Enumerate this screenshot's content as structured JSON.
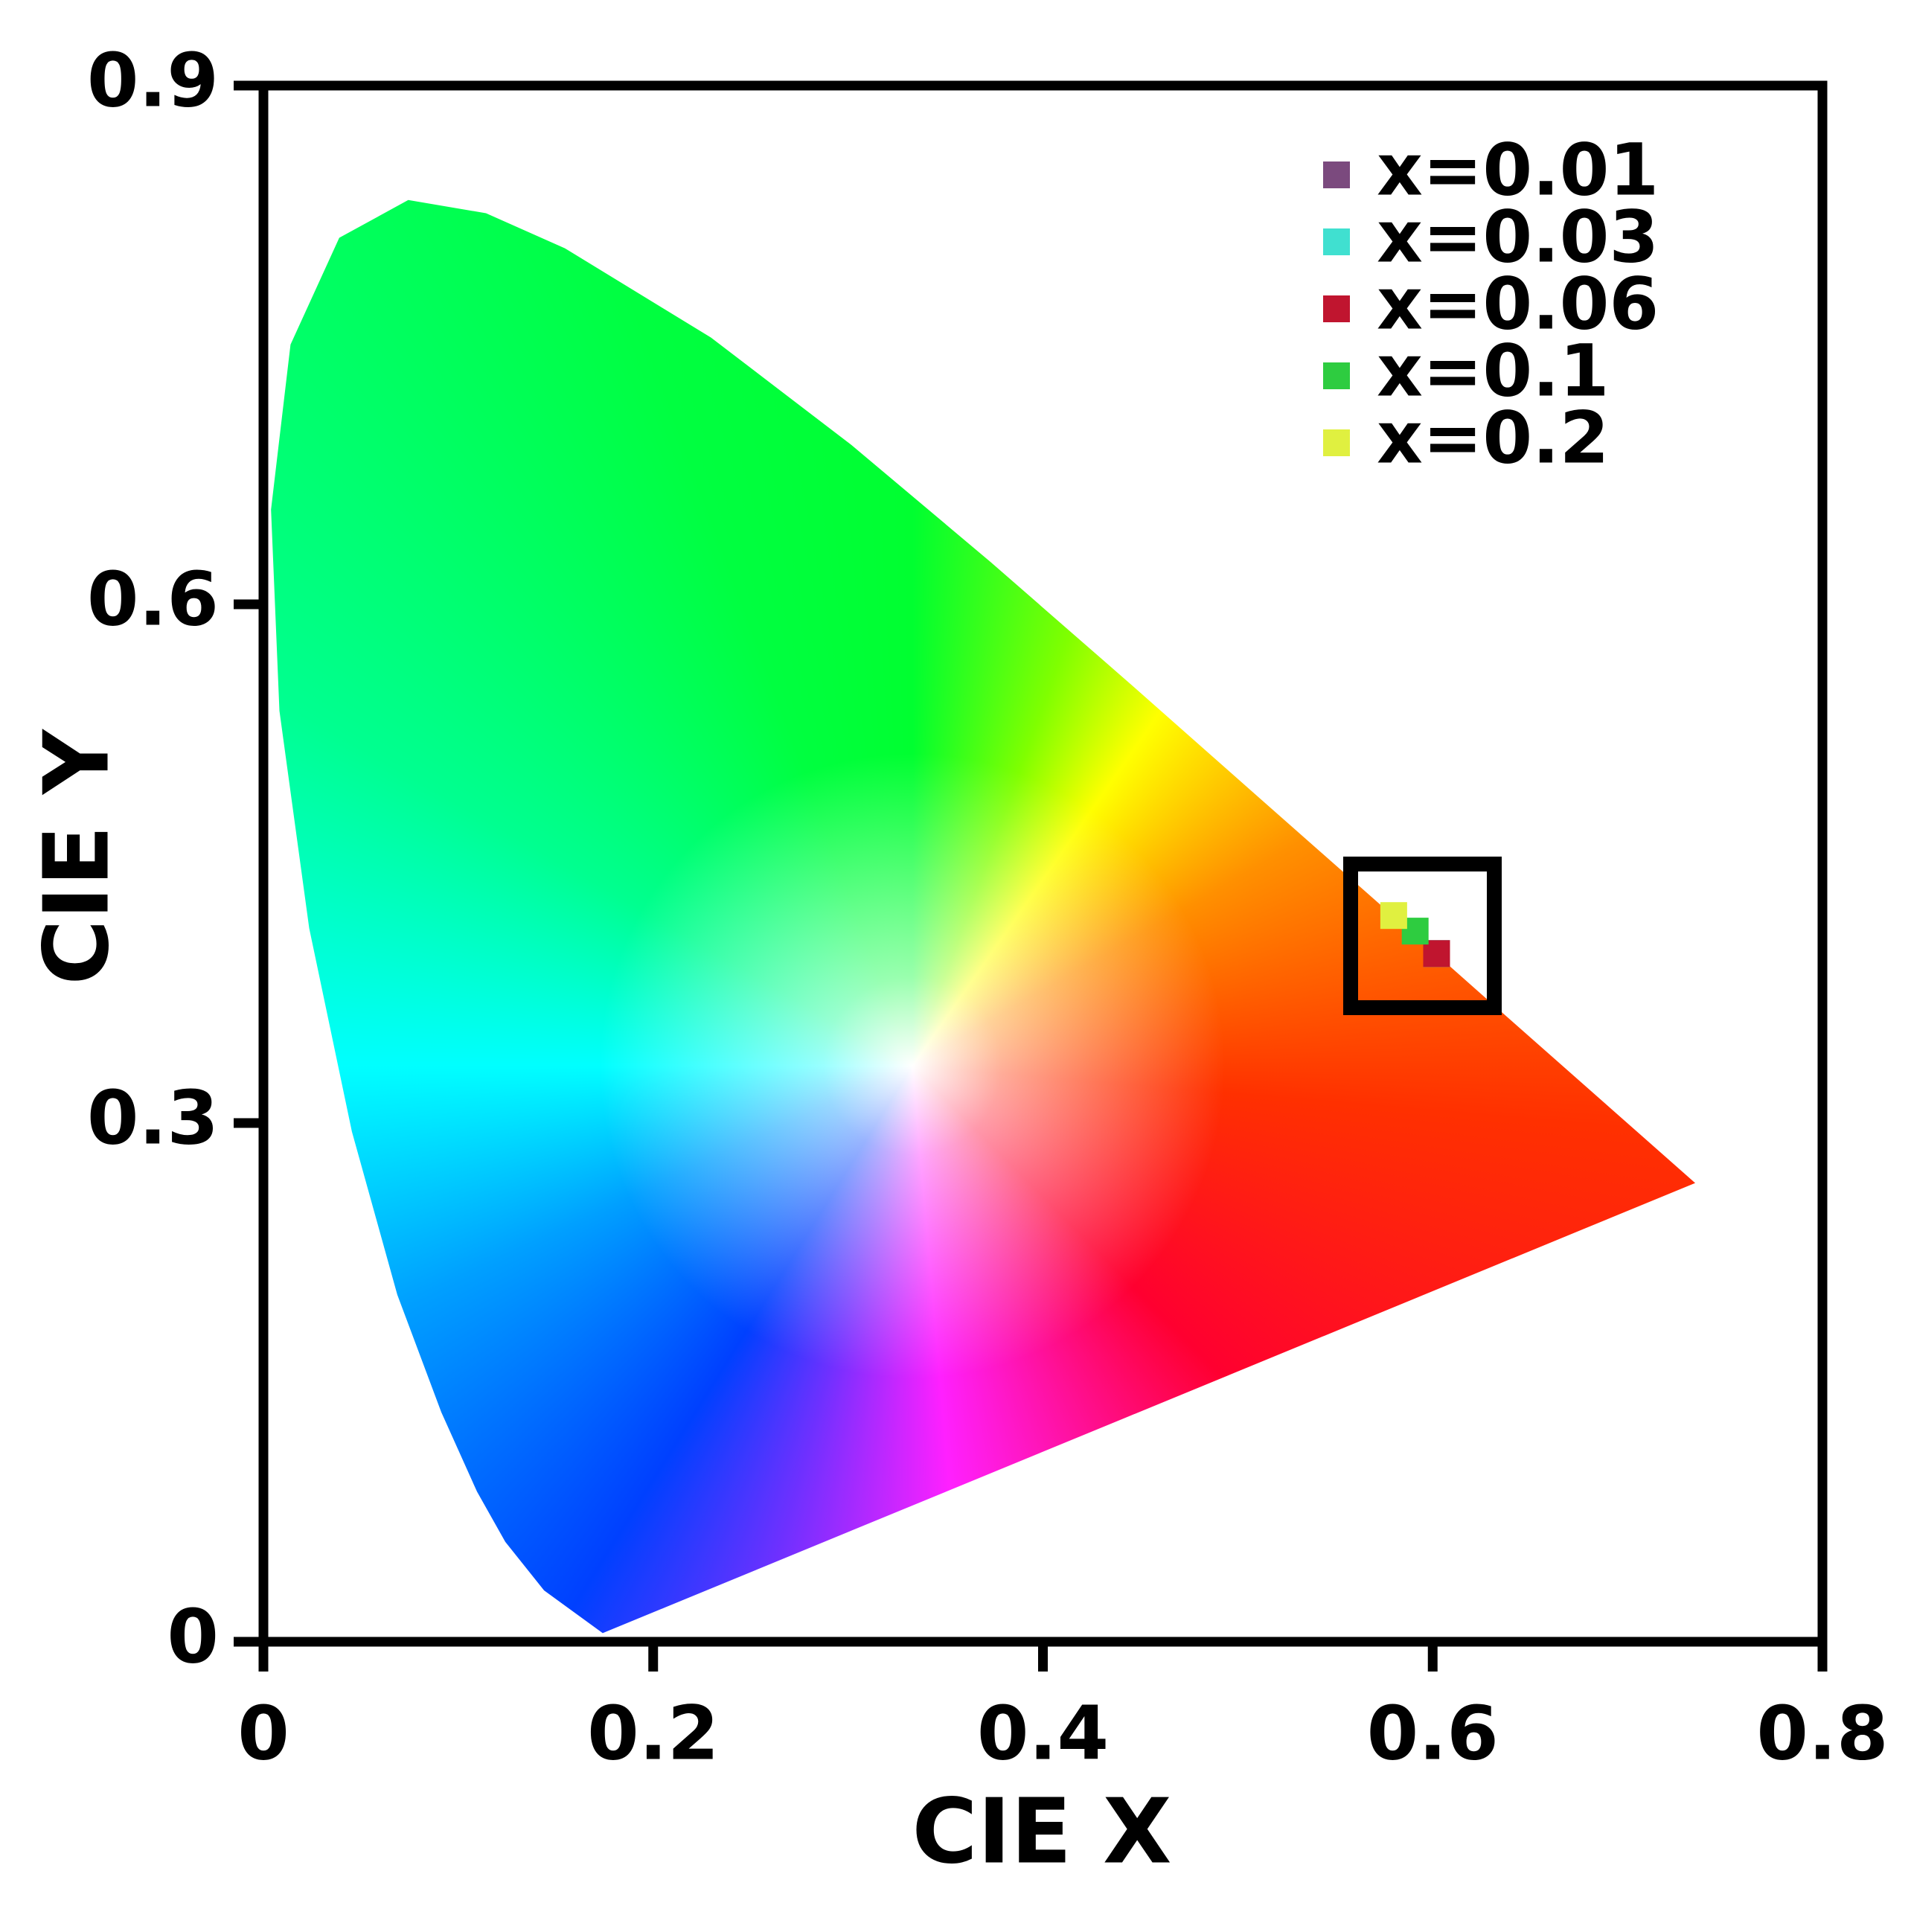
{
  "chart_data": {
    "type": "scatter",
    "xlabel": "CIE X",
    "ylabel": "CIE Y",
    "xlim": [
      0,
      0.8
    ],
    "ylim": [
      0,
      0.9
    ],
    "xticks": [
      0,
      0.2,
      0.4,
      0.6,
      0.8
    ],
    "yticks": [
      0,
      0.3,
      0.6,
      0.9
    ],
    "legend": "upper right",
    "series": [
      {
        "name": "x=0.01",
        "color": "#7b4a7e",
        "x": [
          0.602
        ],
        "y": [
          0.398
        ]
      },
      {
        "name": "x=0.03",
        "color": "#40e0d0",
        "x": [
          0.602
        ],
        "y": [
          0.398
        ]
      },
      {
        "name": "x=0.06",
        "color": "#c0152f",
        "x": [
          0.602
        ],
        "y": [
          0.398
        ]
      },
      {
        "name": "x=0.1",
        "color": "#2ecc40",
        "x": [
          0.591
        ],
        "y": [
          0.411
        ]
      },
      {
        "name": "x=0.2",
        "color": "#e0f040",
        "x": [
          0.58
        ],
        "y": [
          0.42
        ]
      }
    ]
  }
}
